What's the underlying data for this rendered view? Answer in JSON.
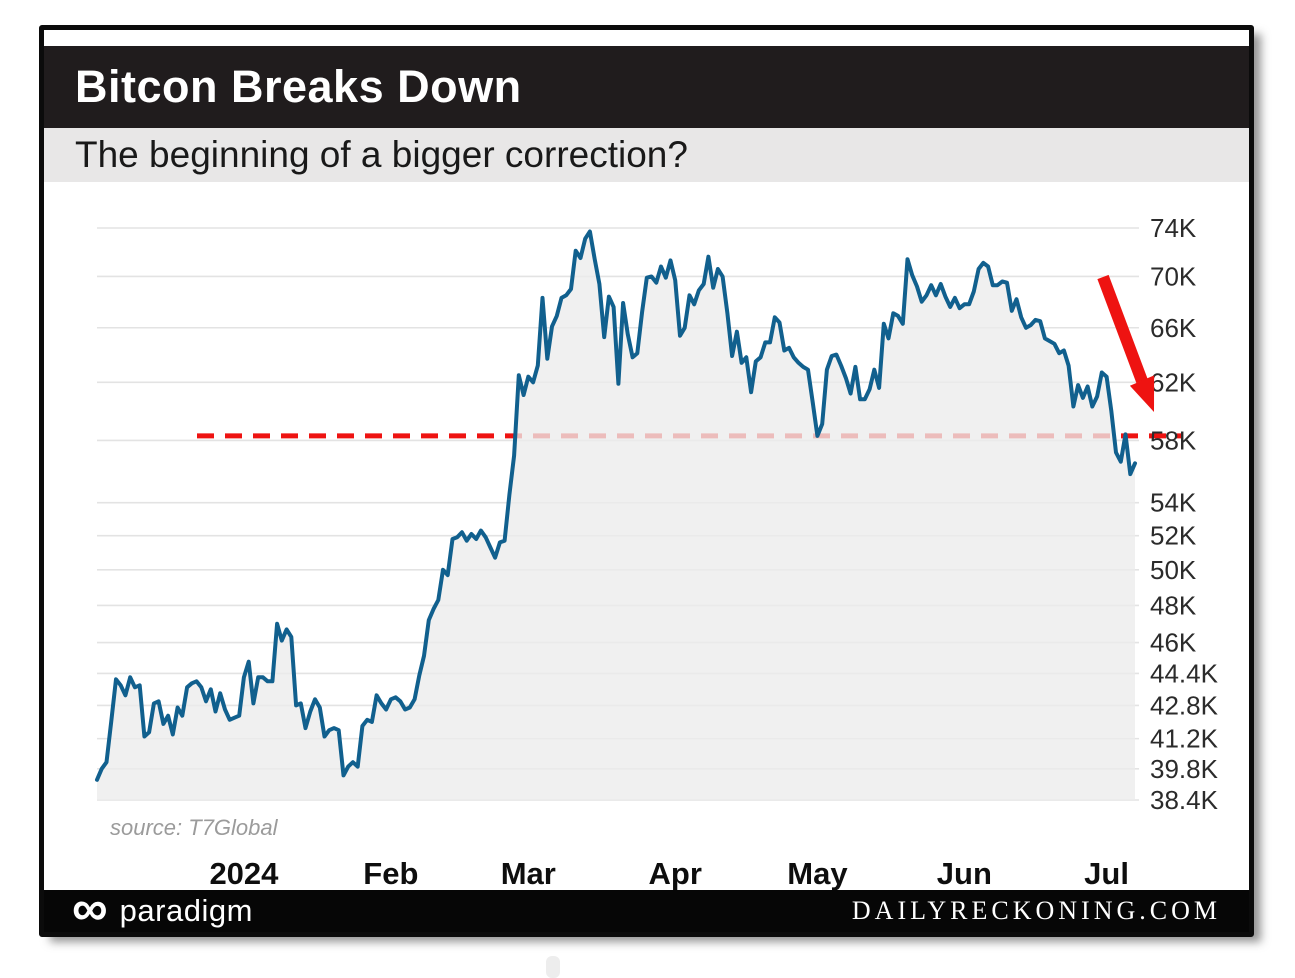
{
  "header": {
    "title": "Bitcon Breaks Down",
    "subtitle": "The beginning of a bigger correction?"
  },
  "footer": {
    "infinity_icon": "∞",
    "brand": "paradigm",
    "site": "DAILYRECKONING.COM"
  },
  "chart_data": {
    "type": "area",
    "title": "Bitcon Breaks Down",
    "subtitle": "The beginning of a bigger correction?",
    "source": "source: T7Global",
    "x_unit": "daily BTC price, Dec 2023 - early Jul 2024",
    "y_scale": "log",
    "y_max_k": 74,
    "y_min_k": 38.4,
    "grid": true,
    "legend": "none",
    "breakdown_level_k": 58.3,
    "line_color": "#11608E",
    "area_color": "#ECECEC",
    "grid_color": "#E3E3E3",
    "dash_color": "#EE1311",
    "arrow_color": "#EE1311",
    "y_ticks": [
      {
        "label": "74K",
        "value": 74
      },
      {
        "label": "70K",
        "value": 70
      },
      {
        "label": "66K",
        "value": 66
      },
      {
        "label": "62K",
        "value": 62
      },
      {
        "label": "58K",
        "value": 58
      },
      {
        "label": "54K",
        "value": 54
      },
      {
        "label": "52K",
        "value": 52
      },
      {
        "label": "50K",
        "value": 50
      },
      {
        "label": "48K",
        "value": 48
      },
      {
        "label": "46K",
        "value": 46
      },
      {
        "label": "44.4K",
        "value": 44.4
      },
      {
        "label": "42.8K",
        "value": 42.8
      },
      {
        "label": "41.2K",
        "value": 41.2
      },
      {
        "label": "39.8K",
        "value": 39.8
      },
      {
        "label": "38.4K",
        "value": 38.4
      }
    ],
    "x_ticks": [
      {
        "label": "2024",
        "day": 31
      },
      {
        "label": "Feb",
        "day": 62
      },
      {
        "label": "Mar",
        "day": 91
      },
      {
        "label": "Apr",
        "day": 122
      },
      {
        "label": "May",
        "day": 152
      },
      {
        "label": "Jun",
        "day": 183
      },
      {
        "label": "Jul",
        "day": 213
      }
    ],
    "values_k": [
      39.3,
      39.8,
      40.1,
      42.0,
      44.1,
      43.8,
      43.3,
      44.2,
      43.7,
      43.8,
      41.3,
      41.5,
      42.9,
      43.0,
      41.9,
      42.3,
      41.4,
      42.7,
      42.3,
      43.7,
      43.9,
      44.0,
      43.7,
      43.0,
      43.6,
      42.5,
      43.4,
      42.6,
      42.1,
      42.2,
      42.3,
      44.2,
      45.0,
      42.9,
      44.2,
      44.2,
      44.0,
      44.0,
      47.0,
      46.1,
      46.7,
      46.3,
      42.8,
      42.9,
      41.7,
      42.5,
      43.1,
      42.7,
      41.3,
      41.6,
      41.7,
      41.6,
      39.5,
      39.9,
      40.1,
      39.9,
      41.8,
      42.1,
      42.0,
      43.3,
      42.9,
      42.6,
      43.1,
      43.2,
      43.0,
      42.6,
      42.7,
      43.1,
      44.3,
      45.3,
      47.2,
      47.8,
      48.3,
      50.0,
      49.7,
      51.8,
      51.9,
      52.2,
      51.7,
      52.1,
      51.8,
      52.3,
      51.9,
      51.3,
      50.7,
      51.6,
      51.7,
      54.5,
      57.0,
      62.5,
      61.1,
      62.4,
      62.0,
      63.2,
      68.3,
      63.7,
      66.1,
      66.9,
      68.3,
      68.5,
      69.0,
      72.1,
      71.5,
      73.1,
      73.7,
      71.4,
      69.4,
      65.3,
      68.4,
      67.6,
      61.9,
      67.9,
      65.5,
      63.8,
      64.1,
      67.2,
      69.9,
      70.0,
      69.5,
      70.8,
      69.9,
      71.3,
      69.7,
      65.4,
      66.0,
      68.5,
      67.8,
      68.9,
      69.4,
      71.6,
      69.1,
      70.6,
      70.0,
      67.1,
      63.9,
      65.7,
      63.4,
      63.8,
      61.3,
      63.5,
      63.8,
      64.9,
      64.9,
      66.8,
      66.4,
      64.3,
      64.5,
      63.8,
      63.4,
      63.1,
      62.9,
      60.6,
      58.3,
      59.1,
      62.9,
      63.9,
      64.0,
      63.2,
      62.3,
      61.2,
      63.1,
      60.8,
      60.8,
      61.5,
      62.9,
      61.6,
      66.3,
      65.2,
      67.1,
      66.9,
      66.3,
      71.4,
      70.1,
      69.2,
      68.0,
      68.5,
      69.3,
      68.5,
      69.4,
      68.4,
      67.6,
      68.3,
      67.5,
      67.8,
      67.8,
      68.8,
      70.6,
      71.1,
      70.8,
      69.3,
      69.3,
      69.6,
      69.5,
      67.3,
      68.2,
      66.8,
      66.0,
      66.2,
      66.6,
      66.5,
      65.2,
      65.0,
      64.8,
      64.1,
      64.3,
      63.2,
      60.3,
      61.8,
      60.9,
      61.7,
      60.3,
      61.0,
      62.7,
      62.4,
      60.0,
      57.2,
      56.6,
      58.4,
      55.8,
      56.5
    ]
  }
}
